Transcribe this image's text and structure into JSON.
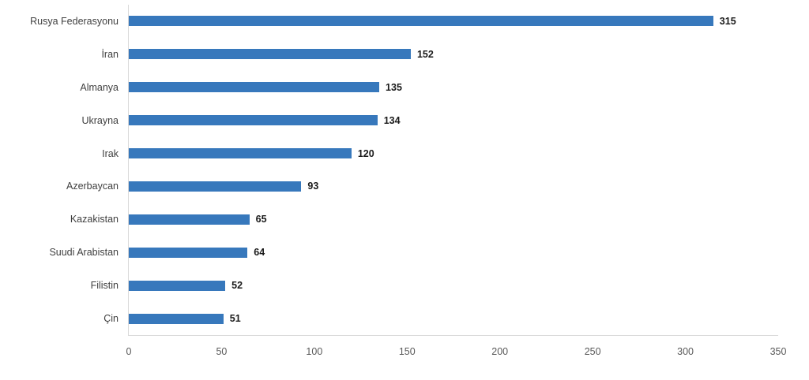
{
  "chart_data": {
    "type": "bar",
    "orientation": "horizontal",
    "title": "",
    "xlabel": "",
    "ylabel": "",
    "categories": [
      "Rusya Federasyonu",
      "İran",
      "Almanya",
      "Ukrayna",
      "Irak",
      "Azerbaycan",
      "Kazakistan",
      "Suudi Arabistan",
      "Filistin",
      "Çin"
    ],
    "values": [
      315,
      152,
      135,
      134,
      120,
      93,
      65,
      64,
      52,
      51
    ],
    "xlim": [
      0,
      350
    ],
    "x_ticks": [
      0,
      50,
      100,
      150,
      200,
      250,
      300,
      350
    ],
    "grid": false,
    "legend": false,
    "data_labels": true,
    "colors": {
      "bar": "#3778bc",
      "axis_line": "#d9d9d9",
      "value_label": "#1a1a1a",
      "category_label": "#3f3f3f",
      "tick_label": "#595959",
      "background": "#ffffff"
    }
  }
}
